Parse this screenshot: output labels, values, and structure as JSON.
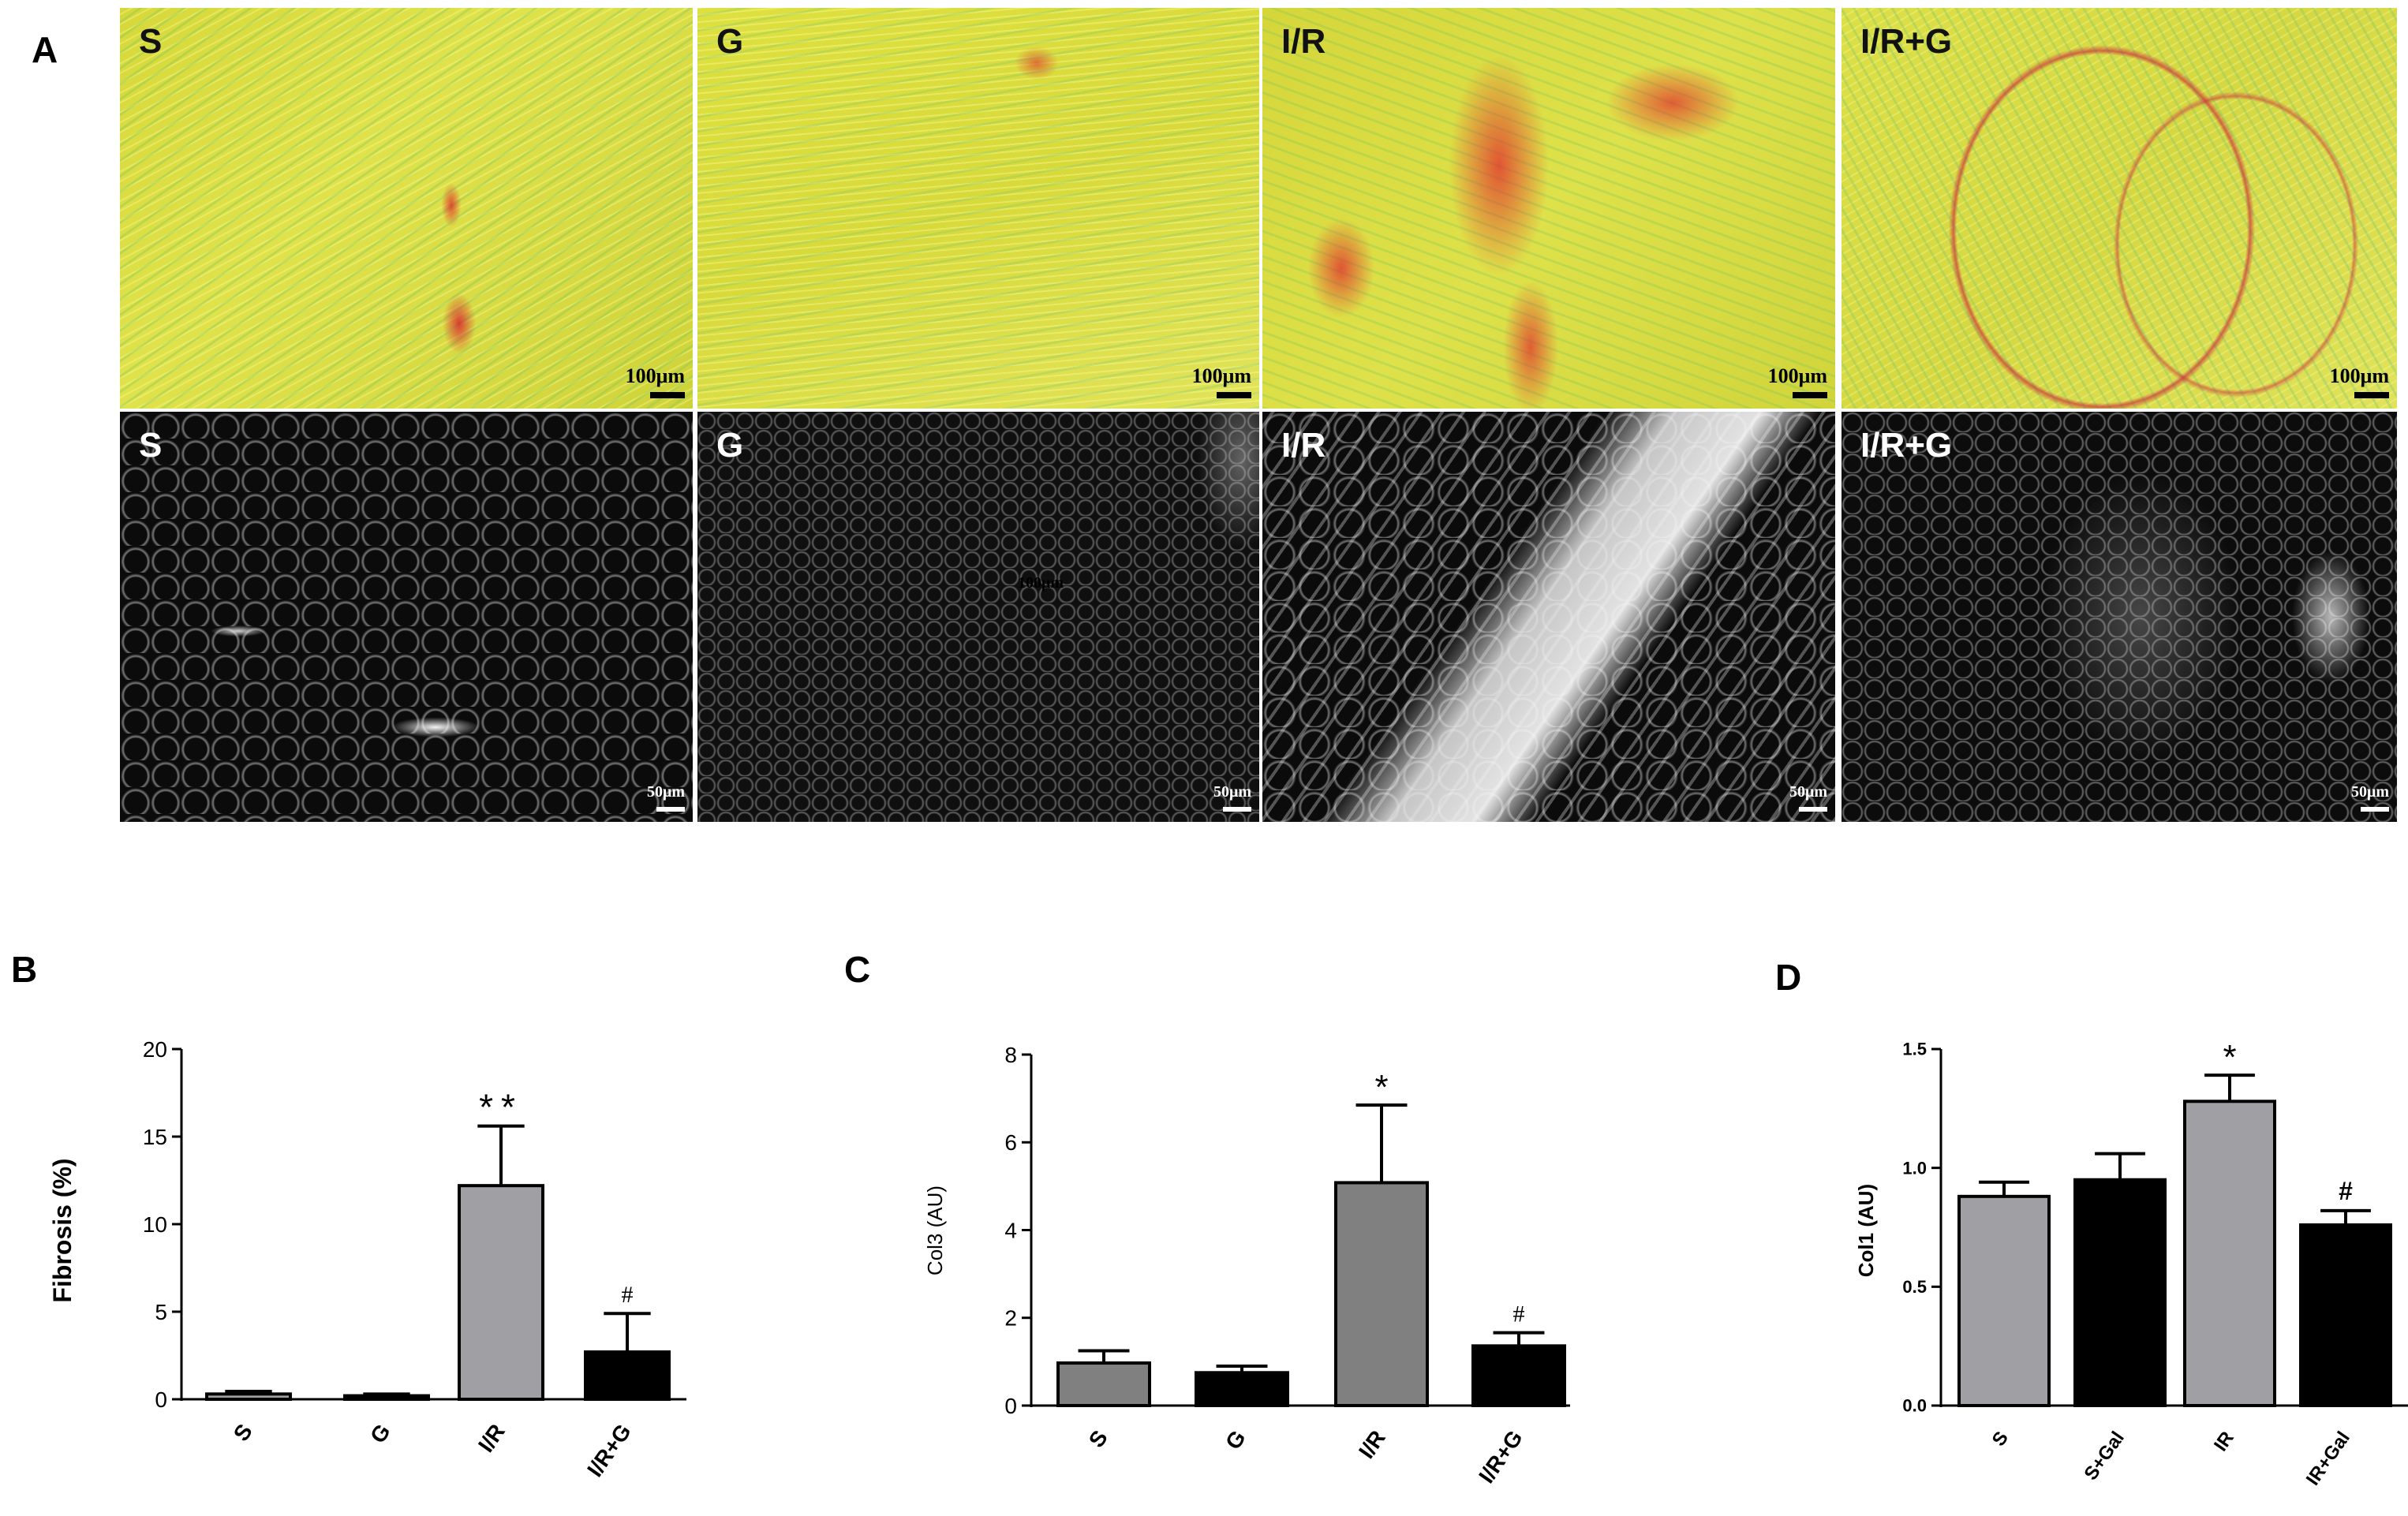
{
  "panel_letters": {
    "a": "A",
    "b": "B",
    "c": "C",
    "d": "D"
  },
  "micrographs": {
    "top_row": [
      {
        "label": "S",
        "scale": "100μm"
      },
      {
        "label": "G",
        "scale": "100μm"
      },
      {
        "label": "I/R",
        "scale": "100μm"
      },
      {
        "label": "I/R+G",
        "scale": "100μm"
      }
    ],
    "bottom_row": [
      {
        "label": "S",
        "scale": "50μm"
      },
      {
        "label": "G",
        "scale": "50μm"
      },
      {
        "label": "I/R",
        "scale": "50μm"
      },
      {
        "label": "I/R+G",
        "scale": "50μm"
      }
    ],
    "inset_text": "100μm",
    "top_row_stain_colors": [
      "#d8dc3a",
      "#e02a2a",
      "#7fd8a0"
    ],
    "bottom_row_colors": [
      "#0a0a0a",
      "#f2f2f2"
    ]
  },
  "chart_data": [
    {
      "type": "bar",
      "categories": [
        "S",
        "G",
        "I/R",
        "I/R+G"
      ],
      "values": [
        0.3,
        0.2,
        12.2,
        2.7
      ],
      "errors": [
        0.15,
        0.1,
        3.4,
        2.2
      ],
      "annotations": [
        "",
        "",
        "**",
        "#"
      ],
      "colors": [
        "#a0a0a4",
        "#000000",
        "#a0a0a4",
        "#000000"
      ],
      "ylabel": "Fibrosis (%)",
      "xlabel": "",
      "ylim": [
        0,
        20
      ],
      "yticks": [
        0,
        5,
        10,
        15,
        20
      ]
    },
    {
      "type": "bar",
      "categories": [
        "S",
        "G",
        "I/R",
        "I/R+G"
      ],
      "values": [
        0.97,
        0.75,
        5.08,
        1.36
      ],
      "errors": [
        0.28,
        0.15,
        1.77,
        0.3
      ],
      "annotations": [
        "",
        "",
        "*",
        "#"
      ],
      "colors": [
        "#808080",
        "#000000",
        "#808080",
        "#000000"
      ],
      "ylabel": "Col3 (AU)",
      "xlabel": "",
      "ylim": [
        0,
        8
      ],
      "yticks": [
        0,
        2,
        4,
        6,
        8
      ]
    },
    {
      "type": "bar",
      "categories": [
        "S",
        "S+Gal",
        "IR",
        "IR+Gal"
      ],
      "values": [
        0.88,
        0.95,
        1.28,
        0.76
      ],
      "errors": [
        0.06,
        0.11,
        0.11,
        0.06
      ],
      "annotations": [
        "",
        "",
        "*",
        "#"
      ],
      "colors": [
        "#a0a0a4",
        "#000000",
        "#a0a0a4",
        "#000000"
      ],
      "ylabel": "Col1 (AU)",
      "xlabel": "",
      "ylim": [
        0,
        1.5
      ],
      "yticks": [
        "0.0",
        "0.5",
        "1.0",
        "1.5"
      ]
    }
  ]
}
